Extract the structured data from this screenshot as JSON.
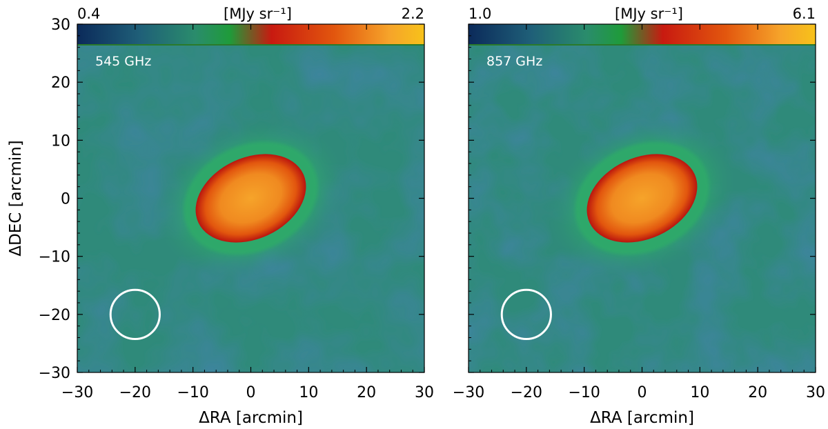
{
  "chart_data": [
    {
      "type": "heatmap",
      "band_label": "545 GHz",
      "colorbar": {
        "min_label": "0.4",
        "max_label": "2.2",
        "unit_label": "[MJy sr⁻¹]",
        "min": 0.4,
        "max": 2.2
      },
      "xlabel": "ΔRA [arcmin]",
      "ylabel": "ΔDEC [arcmin]",
      "xlim": [
        -30,
        30
      ],
      "ylim": [
        -30,
        30
      ],
      "x_ticks": [
        "−30",
        "−20",
        "−10",
        "0",
        "10",
        "20",
        "30"
      ],
      "y_ticks": [
        "−30",
        "−20",
        "−10",
        "0",
        "10",
        "20",
        "30"
      ],
      "source": {
        "center": [
          0,
          0
        ],
        "semi_major": 10,
        "semi_minor": 7,
        "angle_deg": -25
      },
      "beam": {
        "center": [
          -20,
          -20
        ],
        "diameter": 5
      }
    },
    {
      "type": "heatmap",
      "band_label": "857 GHz",
      "colorbar": {
        "min_label": "1.0",
        "max_label": "6.1",
        "unit_label": "[MJy sr⁻¹]",
        "min": 1.0,
        "max": 6.1
      },
      "xlabel": "ΔRA [arcmin]",
      "ylabel": "",
      "xlim": [
        -30,
        30
      ],
      "ylim": [
        -30,
        30
      ],
      "x_ticks": [
        "−30",
        "−20",
        "−10",
        "0",
        "10",
        "20",
        "30"
      ],
      "y_ticks": [],
      "source": {
        "center": [
          0,
          0
        ],
        "semi_major": 10,
        "semi_minor": 7,
        "angle_deg": -25
      },
      "beam": {
        "center": [
          -20,
          -20
        ],
        "diameter": 5
      }
    }
  ],
  "colors": {
    "background_low": "#0d3b5c",
    "background_mid": "#2f8a7a",
    "halo": "#2ea86a",
    "core_edge": "#c81a10",
    "core_center": "#f6a42a",
    "colorbar_stops": [
      "#0b2a5a",
      "#1f5f78",
      "#2a8c6c",
      "#1f9b3a",
      "#c81a10",
      "#e2560e",
      "#f6a42a",
      "#f7c21a"
    ],
    "beam_circle": "#ffffff"
  }
}
